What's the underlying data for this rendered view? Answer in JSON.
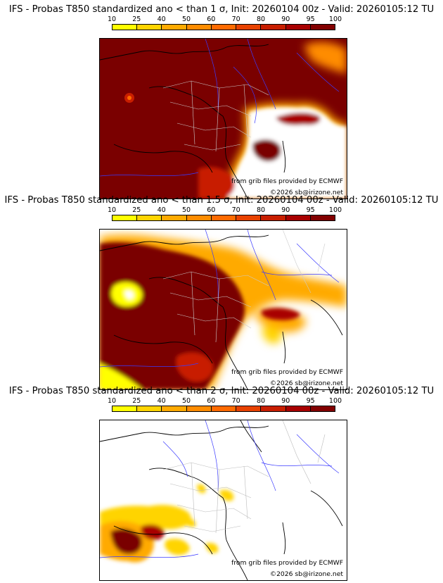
{
  "legend": {
    "ticks": [
      "10",
      "25",
      "40",
      "50",
      "60",
      "70",
      "80",
      "90",
      "95",
      "100"
    ],
    "colors": [
      "#ffff00",
      "#ffd400",
      "#ffaa00",
      "#ff8c00",
      "#ff6a00",
      "#e84200",
      "#c81e00",
      "#a80000",
      "#820000",
      "#5a0000"
    ]
  },
  "credits": {
    "grib": "from grib files provided by ECMWF",
    "copyright": "©2026 sb@irizone.net"
  },
  "panels": [
    {
      "title": "IFS - Probas T850  standardized ano < than 1 σ, Init: 20260104 00z - Valid: 20260105:12 TU"
    },
    {
      "title": "IFS - Probas T850  standardized ano < than 1.5 σ, Init: 20260104 00z - Valid: 20260105:12 TU"
    },
    {
      "title": "IFS - Probas T850  standardized ano < than 2 σ, Init: 20260104 00z - Valid: 20260105:12 TU"
    }
  ]
}
